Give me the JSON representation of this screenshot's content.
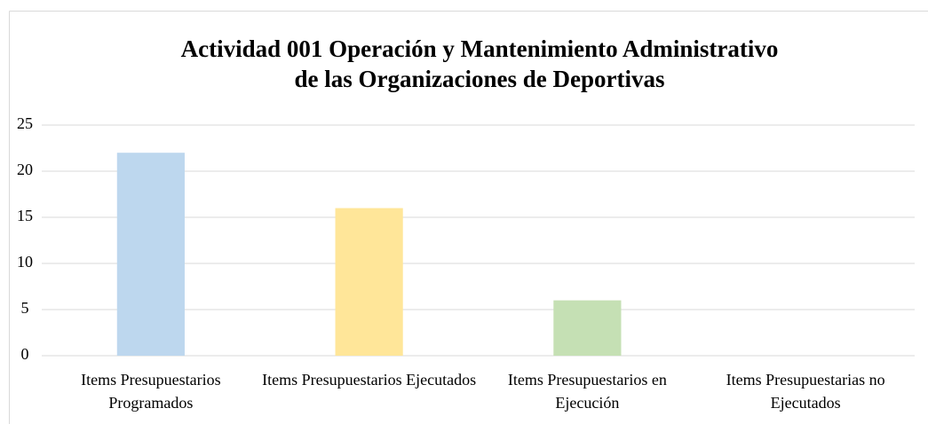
{
  "chart_data": {
    "type": "bar",
    "title": [
      "Actividad 001 Operación y Mantenimiento Administrativo",
      "de las Organizaciones de Deportivas"
    ],
    "categories": [
      "Items Presupuestarios Programados",
      "Items Presupuestarios Ejecutados",
      "Items Presupuestarios en Ejecución",
      "Items Presupuestarias no Ejecutados"
    ],
    "values": [
      22,
      16,
      6,
      0
    ],
    "colors": [
      "#bdd7ee",
      "#ffe699",
      "#c5e0b4",
      "#f8cbad"
    ],
    "ylim": [
      0,
      25
    ],
    "yticks": [
      0,
      5,
      10,
      15,
      20,
      25
    ],
    "grid": true
  }
}
